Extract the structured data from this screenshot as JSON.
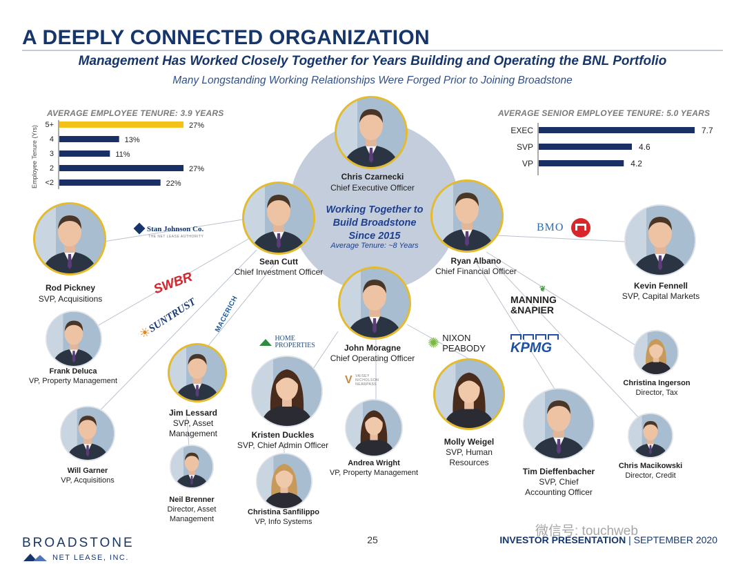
{
  "header": {
    "title": "A DEEPLY CONNECTED ORGANIZATION",
    "headline": "Management Has Worked Closely Together for Years Building and Operating the BNL Portfolio",
    "subheadline": "Many Longstanding Working Relationships Were Forged Prior to Joining Broadstone"
  },
  "hub": {
    "line1": "Working Together to",
    "line2": "Build Broadstone",
    "line3": "Since 2015",
    "sub": "Average Tenure: ~8 Years"
  },
  "chart_data": [
    {
      "type": "bar",
      "orientation": "horizontal",
      "title": "AVERAGE EMPLOYEE TENURE: 3.9 YEARS",
      "ylabel": "Employee Tenure (Yrs)",
      "categories": [
        "5+",
        "4",
        "3",
        "2",
        "<2"
      ],
      "values": [
        27,
        13,
        11,
        27,
        22
      ],
      "labels": [
        "27%",
        "13%",
        "11%",
        "27%",
        "22%"
      ],
      "highlight_color": "#f3c21a",
      "bar_color": "#1a2f63"
    },
    {
      "type": "bar",
      "orientation": "horizontal",
      "title": "AVERAGE SENIOR EMPLOYEE TENURE: 5.0 YEARS",
      "categories": [
        "EXEC",
        "SVP",
        "VP"
      ],
      "values": [
        7.7,
        4.6,
        4.2
      ],
      "labels": [
        "7.7",
        "4.6",
        "4.2"
      ],
      "bar_color": "#1a2f63"
    }
  ],
  "people": {
    "ceo": {
      "name": "Chris Czarnecki",
      "title": "Chief Executive Officer"
    },
    "cio": {
      "name": "Sean Cutt",
      "title": "Chief Investment Officer"
    },
    "cfo": {
      "name": "Ryan Albano",
      "title": "Chief Financial Officer"
    },
    "coo": {
      "name": "John Moragne",
      "title": "Chief Operating Officer"
    },
    "rod": {
      "name": "Rod Pickney",
      "title": "SVP, Acquisitions"
    },
    "frank": {
      "name": "Frank Deluca",
      "title": "VP, Property Management"
    },
    "will": {
      "name": "Will Garner",
      "title": "VP, Acquisitions"
    },
    "jim": {
      "name": "Jim Lessard",
      "title1": "SVP, Asset",
      "title2": "Management"
    },
    "neil": {
      "name": "Neil Brenner",
      "title1": "Director, Asset",
      "title2": "Management"
    },
    "kristen": {
      "name": "Kristen Duckles",
      "title": "SVP, Chief Admin Officer"
    },
    "christina_s": {
      "name": "Christina Sanfilippo",
      "title": "VP, Info Systems"
    },
    "andrea": {
      "name": "Andrea Wright",
      "title": "VP, Property Management"
    },
    "molly": {
      "name": "Molly Weigel",
      "title1": "SVP, Human",
      "title2": "Resources"
    },
    "tim": {
      "name": "Tim Dieffenbacher",
      "title1": "SVP, Chief",
      "title2": "Accounting Officer"
    },
    "kevin": {
      "name": "Kevin Fennell",
      "title": "SVP, Capital Markets"
    },
    "christina_i": {
      "name": "Christina Ingerson",
      "title": "Director, Tax"
    },
    "chris_m": {
      "name": "Chris Macikowski",
      "title": "Director, Credit"
    }
  },
  "logos": {
    "stan_johnson": "Stan Johnson Co.",
    "stan_johnson_sub": "THE NET LEASE AUTHORITY",
    "swbr": "SWBR",
    "suntrust": "SUNTRUST",
    "macerich": "MACERICH",
    "home_properties_1": "HOME",
    "home_properties_2": "PROPERTIES",
    "vnn_1": "VAISEY",
    "vnn_2": "NICHOLSON",
    "vnn_3": "NEARPASS",
    "nixon_1": "NIXON",
    "nixon_2": "PEABODY",
    "bmo": "BMO",
    "manning_1": "MANNING",
    "manning_2": "&NAPIER",
    "kpmg": "KPMG"
  },
  "footer": {
    "brand": "BROADSTONE",
    "brand_sub": "NET LEASE, INC.",
    "page_number": "25",
    "presentation": "INVESTOR PRESENTATION",
    "date": "SEPTEMBER 2020",
    "watermark": "微信号: touchweb"
  },
  "colors": {
    "navy": "#16366b",
    "gold": "#e4bb2c",
    "hub": "#c3cddc"
  }
}
